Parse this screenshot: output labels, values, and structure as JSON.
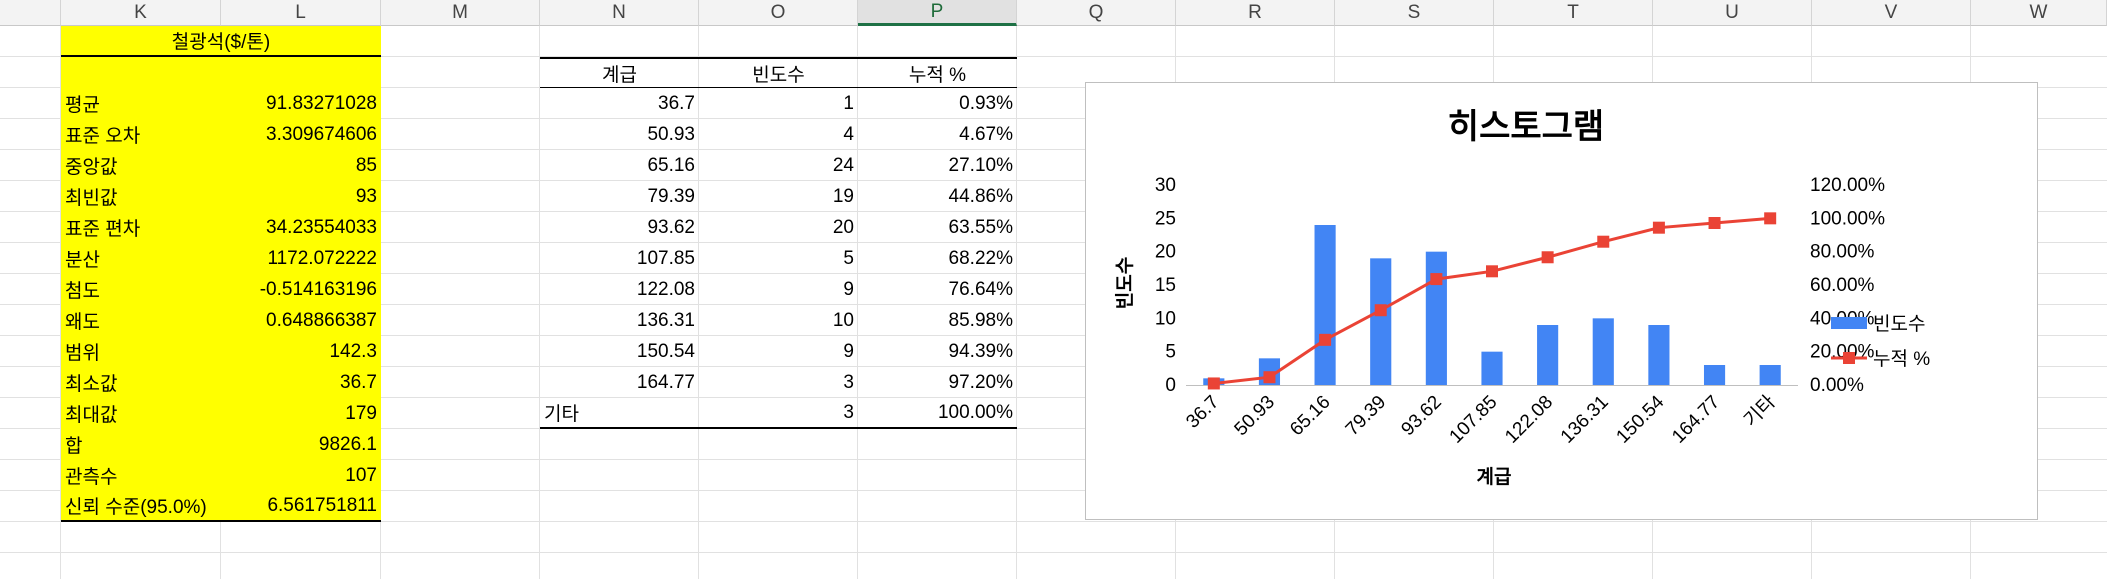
{
  "columns": [
    "K",
    "L",
    "M",
    "N",
    "O",
    "P",
    "Q",
    "R",
    "S",
    "T",
    "U",
    "V",
    "W"
  ],
  "selected_column": "P",
  "stats": {
    "title": "철광석($/톤)",
    "rows": [
      {
        "label": "평균",
        "value": "91.83271028"
      },
      {
        "label": "표준 오차",
        "value": "3.309674606"
      },
      {
        "label": "중앙값",
        "value": "85"
      },
      {
        "label": "최빈값",
        "value": "93"
      },
      {
        "label": "표준 편차",
        "value": "34.23554033"
      },
      {
        "label": "분산",
        "value": "1172.072222"
      },
      {
        "label": "첨도",
        "value": "-0.514163196"
      },
      {
        "label": "왜도",
        "value": "0.648866387"
      },
      {
        "label": "범위",
        "value": "142.3"
      },
      {
        "label": "최소값",
        "value": "36.7"
      },
      {
        "label": "최대값",
        "value": "179"
      },
      {
        "label": "합",
        "value": "9826.1"
      },
      {
        "label": "관측수",
        "value": "107"
      },
      {
        "label": "신뢰 수준(95.0%)",
        "value": "6.561751811"
      }
    ]
  },
  "frequency_table": {
    "headers": [
      "계급",
      "빈도수",
      "누적 %"
    ],
    "rows": [
      {
        "bin": "36.7",
        "freq": "1",
        "cum": "0.93%"
      },
      {
        "bin": "50.93",
        "freq": "4",
        "cum": "4.67%"
      },
      {
        "bin": "65.16",
        "freq": "24",
        "cum": "27.10%"
      },
      {
        "bin": "79.39",
        "freq": "19",
        "cum": "44.86%"
      },
      {
        "bin": "93.62",
        "freq": "20",
        "cum": "63.55%"
      },
      {
        "bin": "107.85",
        "freq": "5",
        "cum": "68.22%"
      },
      {
        "bin": "122.08",
        "freq": "9",
        "cum": "76.64%"
      },
      {
        "bin": "136.31",
        "freq": "10",
        "cum": "85.98%"
      },
      {
        "bin": "150.54",
        "freq": "9",
        "cum": "94.39%"
      },
      {
        "bin": "164.77",
        "freq": "3",
        "cum": "97.20%"
      },
      {
        "bin": "기타",
        "freq": "3",
        "cum": "100.00%"
      }
    ]
  },
  "chart_data": {
    "type": "bar",
    "title": "히스토그램",
    "xlabel": "계급",
    "ylabel": "빈도수",
    "categories": [
      "36.7",
      "50.93",
      "65.16",
      "79.39",
      "93.62",
      "107.85",
      "122.08",
      "136.31",
      "150.54",
      "164.77",
      "기타"
    ],
    "series": [
      {
        "name": "빈도수",
        "type": "bar",
        "axis": "left",
        "color": "#4285f4",
        "values": [
          1,
          4,
          24,
          19,
          20,
          5,
          9,
          10,
          9,
          3,
          3
        ]
      },
      {
        "name": "누적 %",
        "type": "line",
        "axis": "right",
        "color": "#ea4335",
        "values": [
          0.93,
          4.67,
          27.1,
          44.86,
          63.55,
          68.22,
          76.64,
          85.98,
          94.39,
          97.2,
          100.0
        ]
      }
    ],
    "ylim_left": [
      0,
      30
    ],
    "left_ticks": [
      "0",
      "5",
      "10",
      "15",
      "20",
      "25",
      "30"
    ],
    "ylim_right": [
      0,
      120
    ],
    "right_ticks": [
      "0.00%",
      "20.00%",
      "40.00%",
      "60.00%",
      "80.00%",
      "100.00%",
      "120.00%"
    ],
    "grid": false,
    "legend_position": "right"
  }
}
